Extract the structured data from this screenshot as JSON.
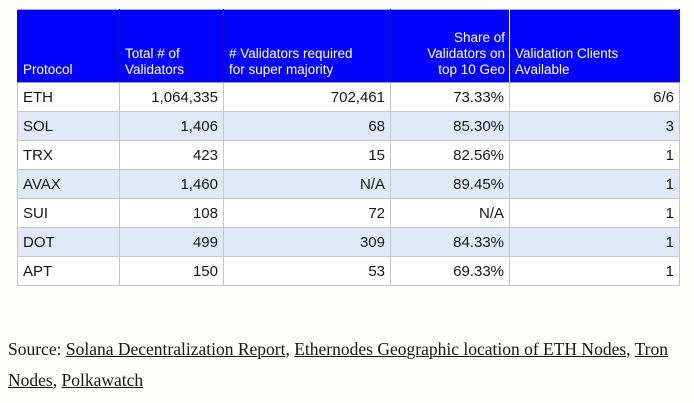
{
  "colors": {
    "page_bg": "#fdfdfa",
    "header_bg": "#0404fc",
    "header_text": "#ffffff",
    "row_alt_bg": "#dfe9f8",
    "row_bg": "#ffffff",
    "cell_border": "#c6c6c6",
    "header_border": "#12129e",
    "text": "#161616"
  },
  "table": {
    "column_keys": [
      "protocol",
      "total_validators",
      "required_supermajority",
      "top10_geo_share",
      "validation_clients"
    ],
    "headers": [
      {
        "label": "Protocol"
      },
      {
        "label": "Total # of\nValidators"
      },
      {
        "label": "# Validators required\nfor super majority"
      },
      {
        "label": "Share of\nValidators on\ntop 10 Geo"
      },
      {
        "label": "Validation Clients\nAvailable"
      }
    ],
    "rows": [
      {
        "protocol": "ETH",
        "total_validators": "1,064,335",
        "required_supermajority": "702,461",
        "top10_geo_share": "73.33%",
        "validation_clients": "6/6"
      },
      {
        "protocol": "SOL",
        "total_validators": "1,406",
        "required_supermajority": "68",
        "top10_geo_share": "85.30%",
        "validation_clients": "3"
      },
      {
        "protocol": "TRX",
        "total_validators": "423",
        "required_supermajority": "15",
        "top10_geo_share": "82.56%",
        "validation_clients": "1"
      },
      {
        "protocol": "AVAX",
        "total_validators": "1,460",
        "required_supermajority": "N/A",
        "top10_geo_share": "89.45%",
        "validation_clients": "1"
      },
      {
        "protocol": "SUI",
        "total_validators": "108",
        "required_supermajority": "72",
        "top10_geo_share": "N/A",
        "validation_clients": "1"
      },
      {
        "protocol": "DOT",
        "total_validators": "499",
        "required_supermajority": "309",
        "top10_geo_share": "84.33%",
        "validation_clients": "1"
      },
      {
        "protocol": "APT",
        "total_validators": "150",
        "required_supermajority": "53",
        "top10_geo_share": "69.33%",
        "validation_clients": "1"
      }
    ]
  },
  "source": {
    "prefix": "Source: ",
    "separator": ", ",
    "links": [
      "Solana Decentralization Report",
      "Ethernodes Geographic location of ETH Nodes",
      "Tron Nodes",
      "Polkawatch"
    ]
  },
  "chart_data": {
    "type": "table",
    "title": "",
    "columns": [
      "Protocol",
      "Total # of Validators",
      "# Validators required for super majority",
      "Share of Validators on top 10 Geo",
      "Validation Clients Available"
    ],
    "rows": [
      [
        "ETH",
        1064335,
        702461,
        "73.33%",
        "6/6"
      ],
      [
        "SOL",
        1406,
        68,
        "85.30%",
        "3"
      ],
      [
        "TRX",
        423,
        15,
        "82.56%",
        "1"
      ],
      [
        "AVAX",
        1460,
        "N/A",
        "89.45%",
        "1"
      ],
      [
        "SUI",
        108,
        72,
        "N/A",
        "1"
      ],
      [
        "DOT",
        499,
        309,
        "84.33%",
        "1"
      ],
      [
        "APT",
        150,
        53,
        "69.33%",
        "1"
      ]
    ]
  }
}
